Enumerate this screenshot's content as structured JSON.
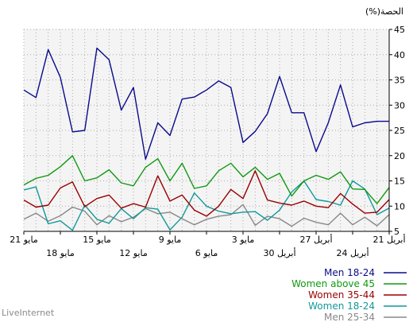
{
  "brand": "LiveInternet",
  "chart_data": {
    "type": "line",
    "ylabel": "(%)الحصة",
    "ylim": [
      5,
      45
    ],
    "yticks": [
      5,
      10,
      15,
      20,
      25,
      30,
      35,
      40,
      45
    ],
    "grid": true,
    "legend_position": "bottom-right",
    "x_ticks_top": [
      "21 مايو",
      "15 مايو",
      "9 مايو",
      "3 مايو",
      "27 أبريل",
      "21 أبريل"
    ],
    "x_ticks_bottom": [
      "18 مايو",
      "12 مايو",
      "6 مايو",
      "30 أبريل",
      "24 أبريل"
    ],
    "series": [
      {
        "name": "Men 18-24",
        "color": "#0a0a8c",
        "values": [
          33,
          31.5,
          41,
          35.5,
          24.7,
          25,
          41.3,
          39,
          29,
          33.5,
          19.3,
          26.5,
          24,
          31.2,
          31.6,
          33,
          34.8,
          33.5,
          22.6,
          24.8,
          28.3,
          35.7,
          28.5,
          28.5,
          20.8,
          26.5,
          34,
          25.7,
          26.5,
          26.8,
          26.8
        ]
      },
      {
        "name": "Women above 45",
        "color": "#119911",
        "values": [
          14.2,
          15.5,
          16.1,
          17.8,
          20,
          15,
          15.6,
          17.2,
          14.6,
          14,
          17.7,
          19.4,
          15,
          18.5,
          13.5,
          14,
          17,
          18.5,
          15.8,
          17.7,
          15.3,
          16.5,
          12,
          15,
          16.1,
          15.3,
          16.8,
          13.4,
          13.3,
          10.5,
          13.7
        ]
      },
      {
        "name": "Women 35-44",
        "color": "#990000",
        "values": [
          11.2,
          9.8,
          10.2,
          13.6,
          14.8,
          9.9,
          11.5,
          12.2,
          9.6,
          10.5,
          9.8,
          16,
          11,
          12.2,
          9.2,
          8,
          10,
          13.3,
          11.5,
          17,
          11.2,
          10.6,
          10.2,
          11,
          10,
          9.7,
          12.5,
          10.4,
          8.6,
          8.8,
          11.3
        ]
      },
      {
        "name": "Women 18-24",
        "color": "#119999",
        "values": [
          13.2,
          13.8,
          6.5,
          7.1,
          5.2,
          10.2,
          7.4,
          6.6,
          9.5,
          7.5,
          9.7,
          9.4,
          5.3,
          7.8,
          12.6,
          10,
          9,
          8.5,
          8.8,
          8.9,
          7.2,
          9.2,
          12.8,
          15,
          11.3,
          10.9,
          10.2,
          15,
          13.4,
          8.3,
          9.6
        ]
      },
      {
        "name": "Men 25-34",
        "color": "#888888",
        "values": [
          7.4,
          8.6,
          7,
          8.1,
          9.8,
          9,
          6.3,
          8.1,
          6.9,
          7.8,
          9.5,
          8.5,
          8.8,
          7.5,
          6.3,
          7.4,
          8,
          8.3,
          10.3,
          6.2,
          8,
          7.5,
          6,
          7.6,
          6.8,
          6.3,
          8.6,
          6.3,
          7.8,
          6.1,
          8.3
        ]
      }
    ]
  }
}
